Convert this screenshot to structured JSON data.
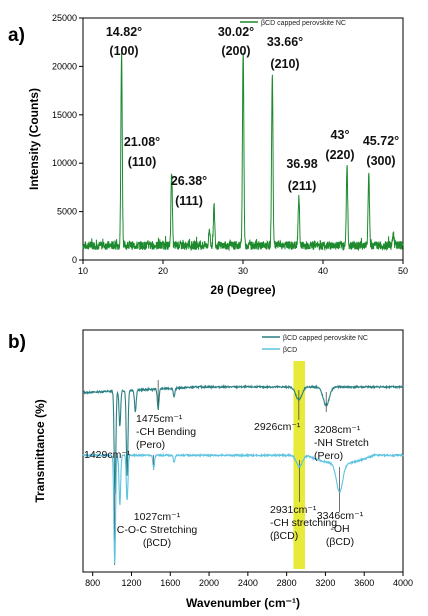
{
  "colors": {
    "xrd_line": "#1e8a2e",
    "ftir_capped": "#2a7f83",
    "ftir_bcd": "#5cc3e0",
    "highlight": "#e8ea3a",
    "ref_line": "#333333"
  },
  "chart_data": [
    {
      "type": "line",
      "panel_label": "a)",
      "xlabel": "2θ (Degree)",
      "ylabel": "Intensity (Counts)",
      "xlim": [
        10,
        50
      ],
      "ylim": [
        0,
        25000
      ],
      "xticks": [
        "10",
        "20",
        "30",
        "40",
        "50"
      ],
      "yticks": [
        "0",
        "5000",
        "10000",
        "15000",
        "20000",
        "25000"
      ],
      "legend": {
        "position": "top-right",
        "entries": [
          "βCD capped perovskite NC"
        ]
      },
      "baseline": 1500,
      "series": [
        {
          "name": "βCD capped perovskite NC",
          "peaks": [
            {
              "x": 14.82,
              "y": 21500
            },
            {
              "x": 21.08,
              "y": 9200
            },
            {
              "x": 26.38,
              "y": 5600
            },
            {
              "x": 30.02,
              "y": 21800
            },
            {
              "x": 33.66,
              "y": 19300
            },
            {
              "x": 36.98,
              "y": 6600
            },
            {
              "x": 43.0,
              "y": 9700
            },
            {
              "x": 45.72,
              "y": 8800
            },
            {
              "x": 25.8,
              "y": 3200
            },
            {
              "x": 48.8,
              "y": 2700
            }
          ]
        }
      ],
      "annotations": [
        {
          "angle": "14.82°",
          "hkl": "(100)"
        },
        {
          "angle": "21.08°",
          "hkl": "(110)"
        },
        {
          "angle": "26.38°",
          "hkl": "(111)"
        },
        {
          "angle": "30.02°",
          "hkl": "(200)"
        },
        {
          "angle": "33.66°",
          "hkl": "(210)"
        },
        {
          "angle": "36.98",
          "hkl": "(211)"
        },
        {
          "angle": "43°",
          "hkl": "(220)"
        },
        {
          "angle": "45.72°",
          "hkl": "(300)"
        }
      ]
    },
    {
      "type": "line",
      "panel_label": "b)",
      "xlabel": "Wavenumber (cm⁻¹)",
      "ylabel": "Transmittance (%)",
      "xlim": [
        700,
        4000
      ],
      "xticks": [
        "800",
        "1200",
        "1600",
        "2000",
        "2400",
        "2800",
        "3200",
        "3600",
        "4000"
      ],
      "legend": {
        "position": "top-right",
        "entries": [
          "βCD capped perovskite NC",
          "βCD"
        ]
      },
      "highlight_band": [
        2870,
        2990
      ],
      "series": [
        {
          "name": "βCD capped perovskite NC",
          "baseline": 100,
          "dips": [
            {
              "x": 1030,
              "depth": 72
            },
            {
              "x": 1080,
              "depth": 25
            },
            {
              "x": 1155,
              "depth": 60
            },
            {
              "x": 1240,
              "depth": 15
            },
            {
              "x": 1475,
              "depth": 14
            },
            {
              "x": 1640,
              "depth": 6
            },
            {
              "x": 2926,
              "depth": 9
            },
            {
              "x": 3208,
              "depth": 13
            }
          ]
        },
        {
          "name": "βCD",
          "baseline": 52,
          "dips": [
            {
              "x": 1027,
              "depth": 76
            },
            {
              "x": 1080,
              "depth": 35
            },
            {
              "x": 1155,
              "depth": 32
            },
            {
              "x": 1429,
              "depth": 9
            },
            {
              "x": 1640,
              "depth": 5
            },
            {
              "x": 2931,
              "depth": 8
            },
            {
              "x": 3346,
              "depth": 20
            }
          ]
        }
      ],
      "annotations": [
        {
          "line1": "1475cm⁻¹",
          "line2": "-CH Bending",
          "line3": "(Pero)"
        },
        {
          "line1": "1429cm⁻¹"
        },
        {
          "line1": "1027cm⁻¹",
          "line2": "C-O-C Stretching",
          "line3": "(βCD)"
        },
        {
          "line1": "2926cm⁻¹"
        },
        {
          "line1": "3208cm⁻¹",
          "line2": "-NH Stretch",
          "line3": "(Pero)"
        },
        {
          "line1": "2931cm⁻¹",
          "line2": "-CH stretching",
          "line3": "(βCD)"
        },
        {
          "line1": "3346cm⁻¹",
          "line2": "-OH",
          "line3": "(βCD)"
        }
      ]
    }
  ]
}
